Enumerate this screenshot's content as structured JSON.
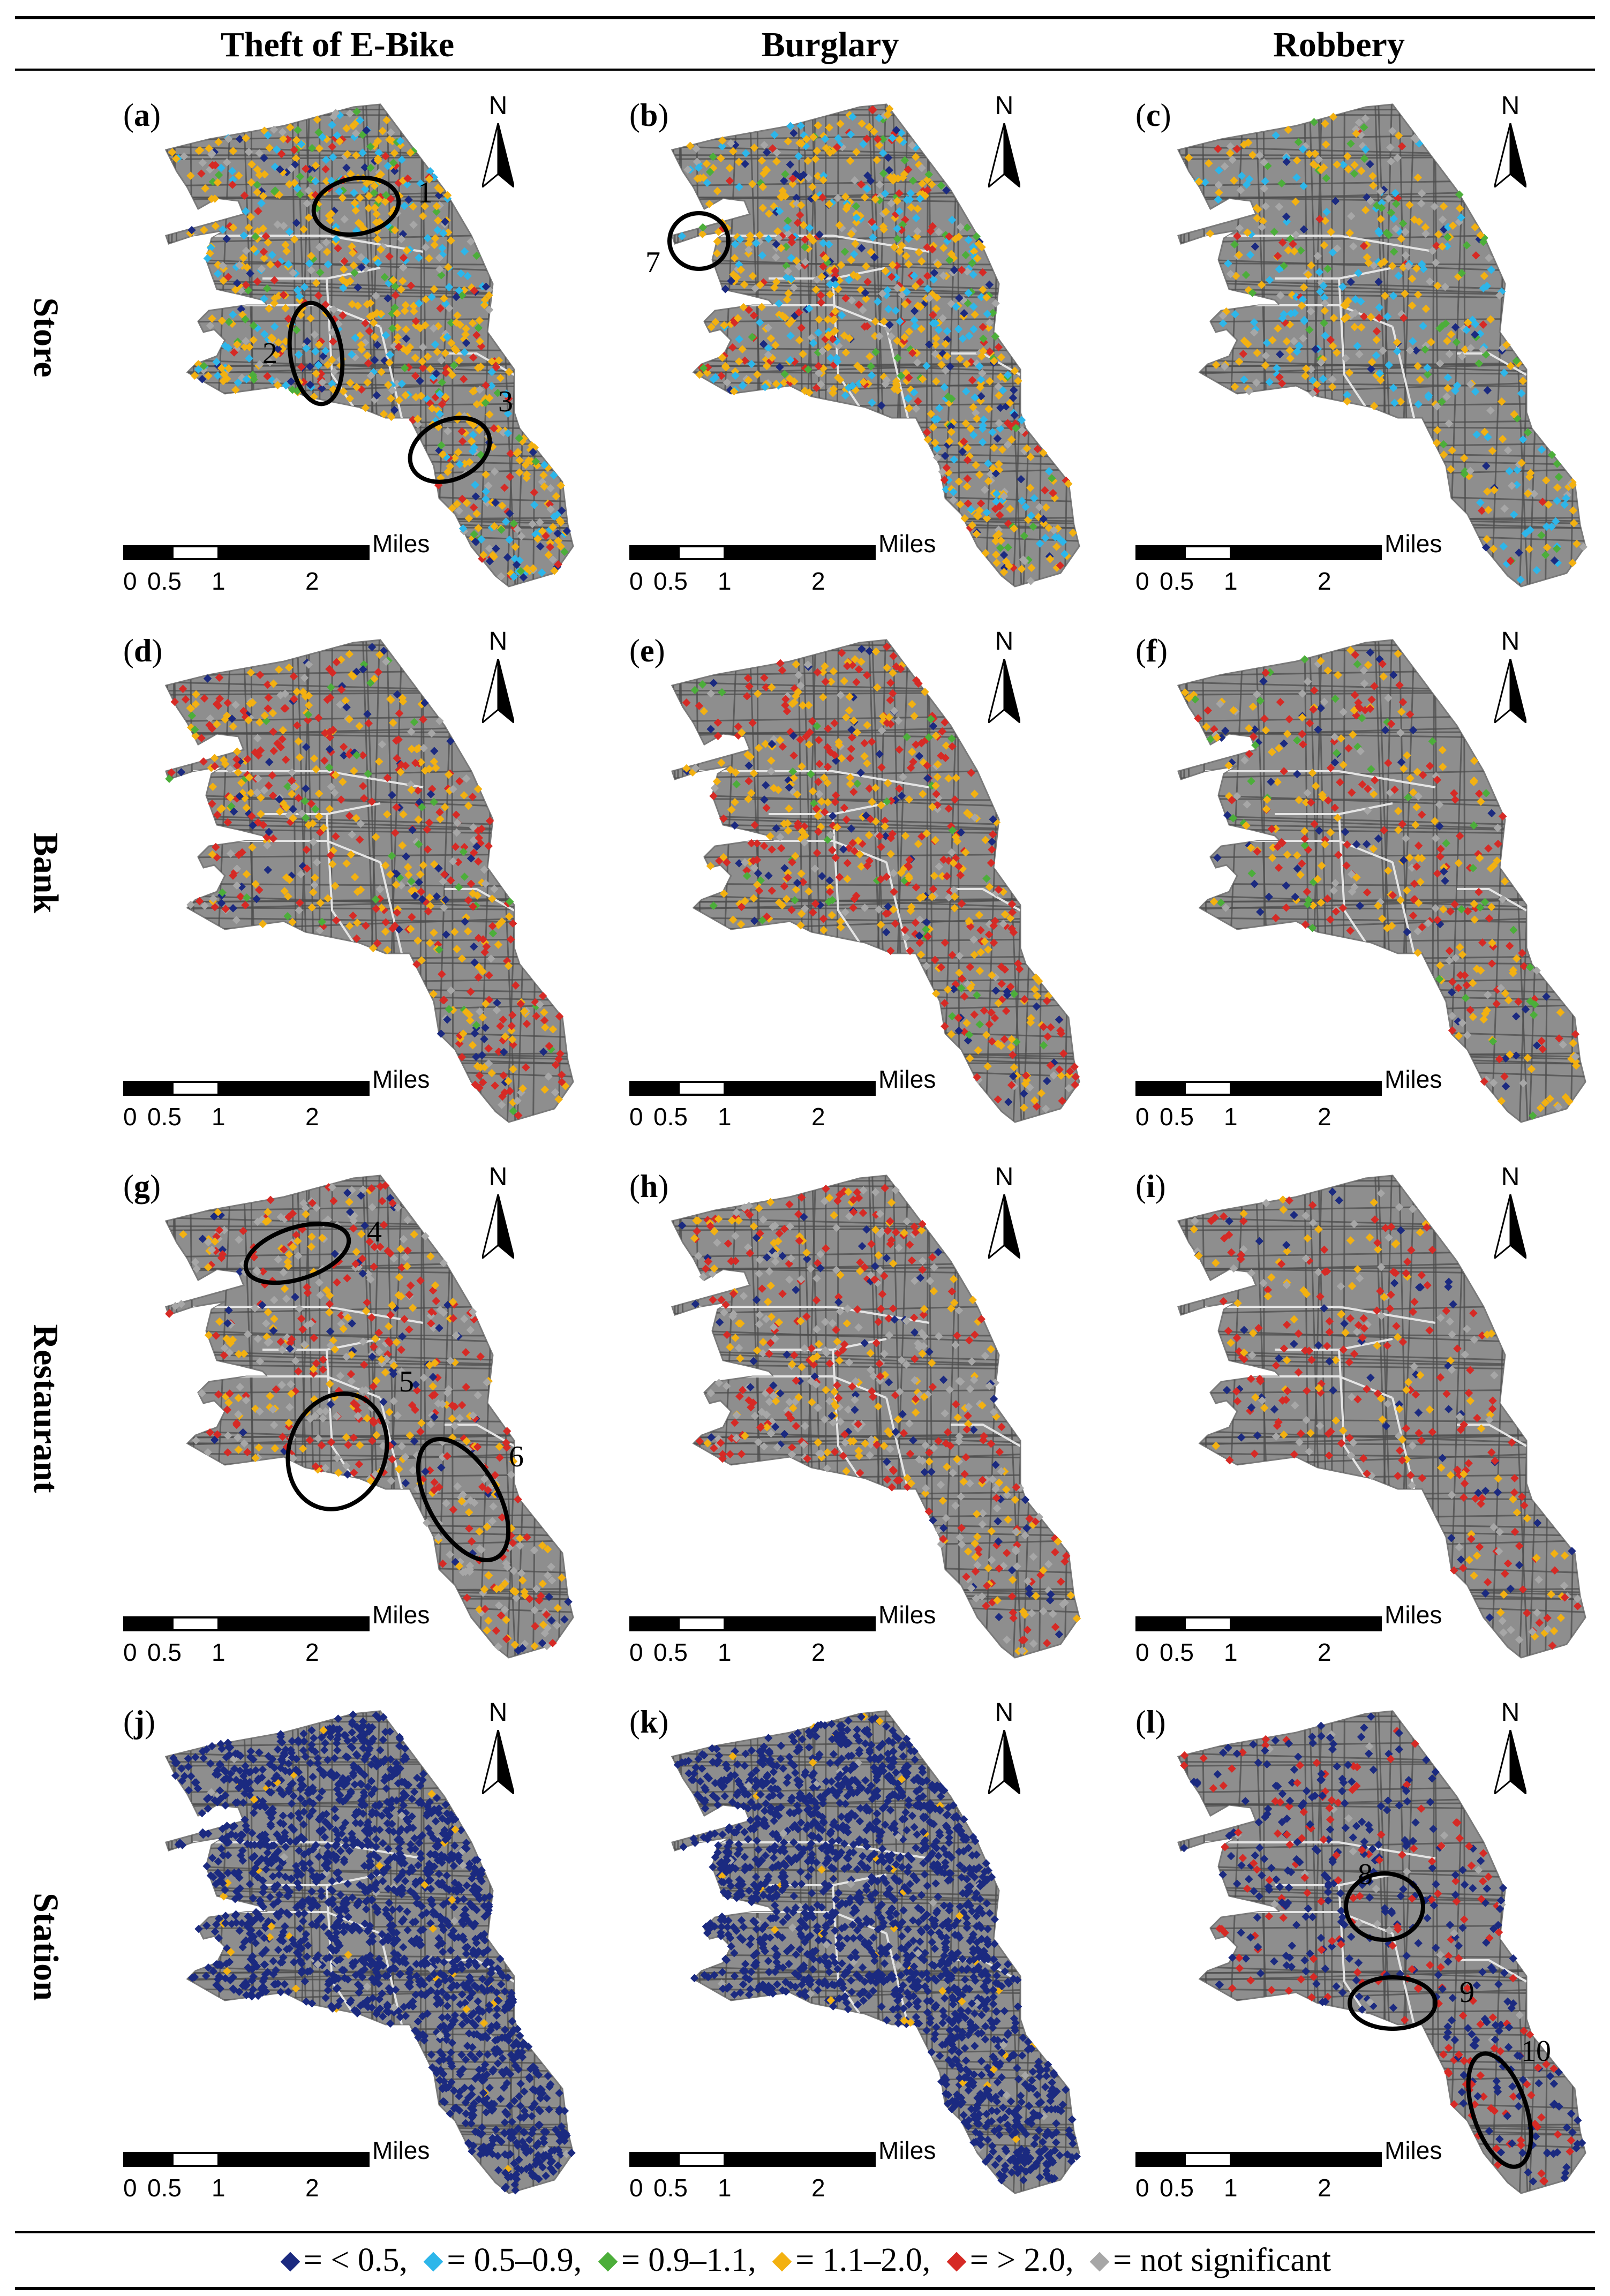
{
  "columns": [
    "Theft of E-Bike",
    "Burglary",
    "Robbery"
  ],
  "rows": [
    "Store",
    "Bank",
    "Restaurant",
    "Station"
  ],
  "north_label": "N",
  "scale": {
    "unit": "Miles",
    "ticks": [
      "0",
      "0.5",
      "1",
      "2"
    ]
  },
  "colors": {
    "lt05": "#1b2a80",
    "c05_09": "#2db6ea",
    "c09_11": "#4cae3a",
    "c11_20": "#f3b111",
    "gt20": "#d62a25",
    "ns": "#a7a7a7",
    "land": "#8e8e8e",
    "streets": "#4d4d4d",
    "boundaries": "#e5e5e5"
  },
  "panels": [
    {
      "id": "a",
      "row": "Store",
      "column": "Theft of E-Bike",
      "pattern": "mixed-orange-blue",
      "clusters": [
        {
          "label": "1"
        },
        {
          "label": "2"
        },
        {
          "label": "3"
        }
      ]
    },
    {
      "id": "b",
      "row": "Store",
      "column": "Burglary",
      "pattern": "mixed-orange-blue",
      "clusters": [
        {
          "label": "7"
        }
      ]
    },
    {
      "id": "c",
      "row": "Store",
      "column": "Robbery",
      "pattern": "mixed-sparse",
      "clusters": []
    },
    {
      "id": "d",
      "row": "Bank",
      "column": "Theft of E-Bike",
      "pattern": "mixed-red",
      "clusters": []
    },
    {
      "id": "e",
      "row": "Bank",
      "column": "Burglary",
      "pattern": "mixed-red",
      "clusters": []
    },
    {
      "id": "f",
      "row": "Bank",
      "column": "Robbery",
      "pattern": "mixed-red-sparse",
      "clusters": []
    },
    {
      "id": "g",
      "row": "Restaurant",
      "column": "Theft of E-Bike",
      "pattern": "red-gray",
      "clusters": [
        {
          "label": "4"
        },
        {
          "label": "5"
        },
        {
          "label": "6"
        }
      ]
    },
    {
      "id": "h",
      "row": "Restaurant",
      "column": "Burglary",
      "pattern": "red-gray",
      "clusters": []
    },
    {
      "id": "i",
      "row": "Restaurant",
      "column": "Robbery",
      "pattern": "red-sparse",
      "clusters": []
    },
    {
      "id": "j",
      "row": "Station",
      "column": "Theft of E-Bike",
      "pattern": "dense-blue",
      "clusters": []
    },
    {
      "id": "k",
      "row": "Station",
      "column": "Burglary",
      "pattern": "dense-blue",
      "clusters": []
    },
    {
      "id": "l",
      "row": "Station",
      "column": "Robbery",
      "pattern": "blue-red",
      "clusters": [
        {
          "label": "8"
        },
        {
          "label": "9"
        },
        {
          "label": "10"
        }
      ]
    }
  ],
  "legend": [
    {
      "key": "lt05",
      "label": "= < 0.5,"
    },
    {
      "key": "c05_09",
      "label": "= 0.5–0.9,"
    },
    {
      "key": "c09_11",
      "label": "= 0.9–1.1,"
    },
    {
      "key": "c11_20",
      "label": "= 1.1–2.0,"
    },
    {
      "key": "gt20",
      "label": "= > 2.0,"
    },
    {
      "key": "ns",
      "label": "= not significant"
    }
  ]
}
